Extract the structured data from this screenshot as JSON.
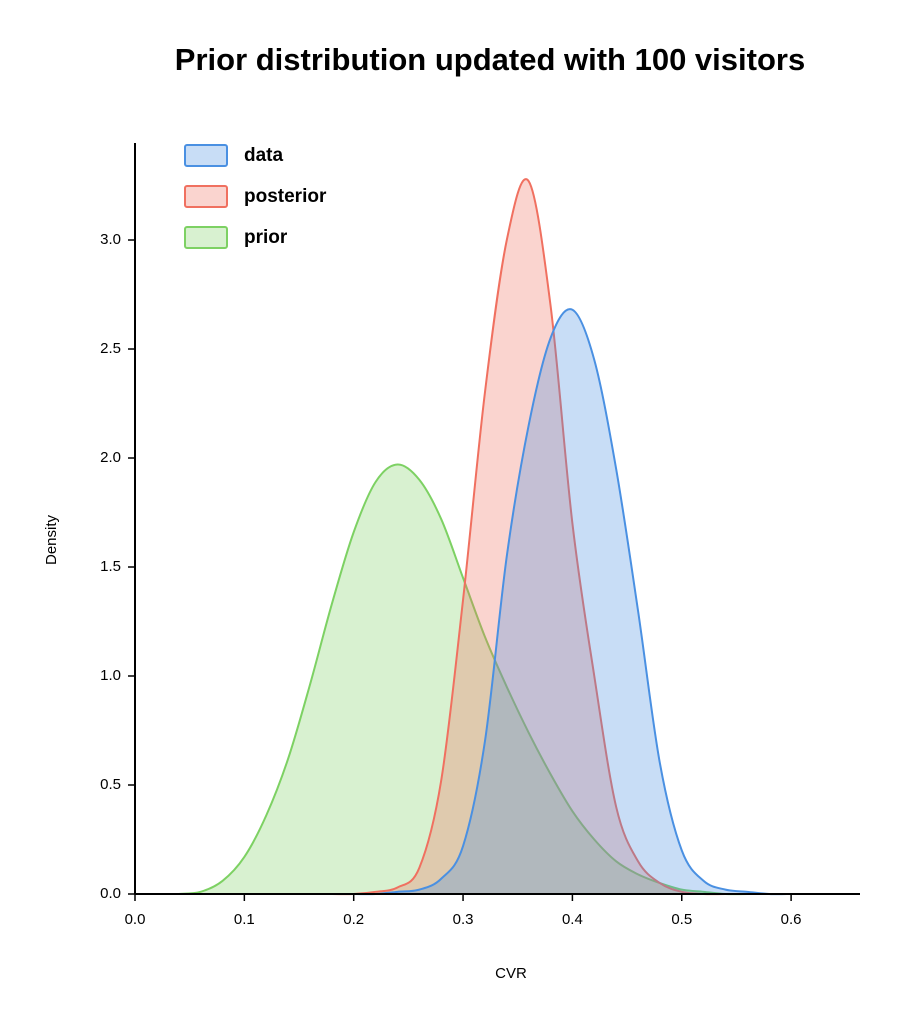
{
  "chart_data": {
    "type": "area",
    "title": "Prior distribution updated with 100 visitors",
    "x_label": "CVR",
    "y_label": "Density",
    "x": [
      0.04,
      0.06,
      0.08,
      0.1,
      0.12,
      0.14,
      0.16,
      0.18,
      0.2,
      0.22,
      0.24,
      0.26,
      0.28,
      0.3,
      0.32,
      0.34,
      0.36,
      0.38,
      0.4,
      0.42,
      0.44,
      0.46,
      0.48,
      0.5,
      0.52,
      0.54,
      0.56,
      0.58,
      0.6
    ],
    "series": [
      {
        "name": "data",
        "color": "#4a90e2",
        "values": [
          0,
          0,
          0,
          0,
          0,
          0,
          0,
          0,
          0,
          0,
          0.01,
          0.02,
          0.07,
          0.22,
          0.7,
          1.55,
          2.15,
          2.55,
          2.68,
          2.45,
          1.95,
          1.3,
          0.6,
          0.2,
          0.06,
          0.02,
          0.01,
          0,
          0
        ]
      },
      {
        "name": "posterior",
        "color": "#f07060",
        "values": [
          0,
          0,
          0,
          0,
          0,
          0,
          0,
          0,
          0,
          0.01,
          0.03,
          0.12,
          0.52,
          1.35,
          2.3,
          3.0,
          3.27,
          2.7,
          1.7,
          1.0,
          0.4,
          0.15,
          0.05,
          0.01,
          0,
          0,
          0,
          0,
          0
        ]
      },
      {
        "name": "prior",
        "color": "#7dd163",
        "values": [
          0,
          0.01,
          0.06,
          0.17,
          0.36,
          0.62,
          0.96,
          1.33,
          1.66,
          1.89,
          1.97,
          1.9,
          1.72,
          1.45,
          1.18,
          0.95,
          0.74,
          0.55,
          0.38,
          0.25,
          0.15,
          0.09,
          0.05,
          0.02,
          0.01,
          0,
          0,
          0,
          0
        ]
      }
    ],
    "xlim": [
      0,
      0.663
    ],
    "ylim": [
      0,
      3.445
    ],
    "xticks": [
      {
        "value": 0,
        "label": "0.0"
      },
      0.1,
      0.2,
      0.3,
      0.4,
      0.5,
      0.6
    ],
    "yticks": [
      {
        "value": 0,
        "label": "0.0"
      },
      0.5,
      {
        "value": 1,
        "label": "1.0"
      },
      1.5,
      {
        "value": 2,
        "label": "2.0"
      },
      2.5,
      {
        "value": 3,
        "label": "3.0"
      }
    ],
    "legend": "upper-left",
    "grid": false
  }
}
